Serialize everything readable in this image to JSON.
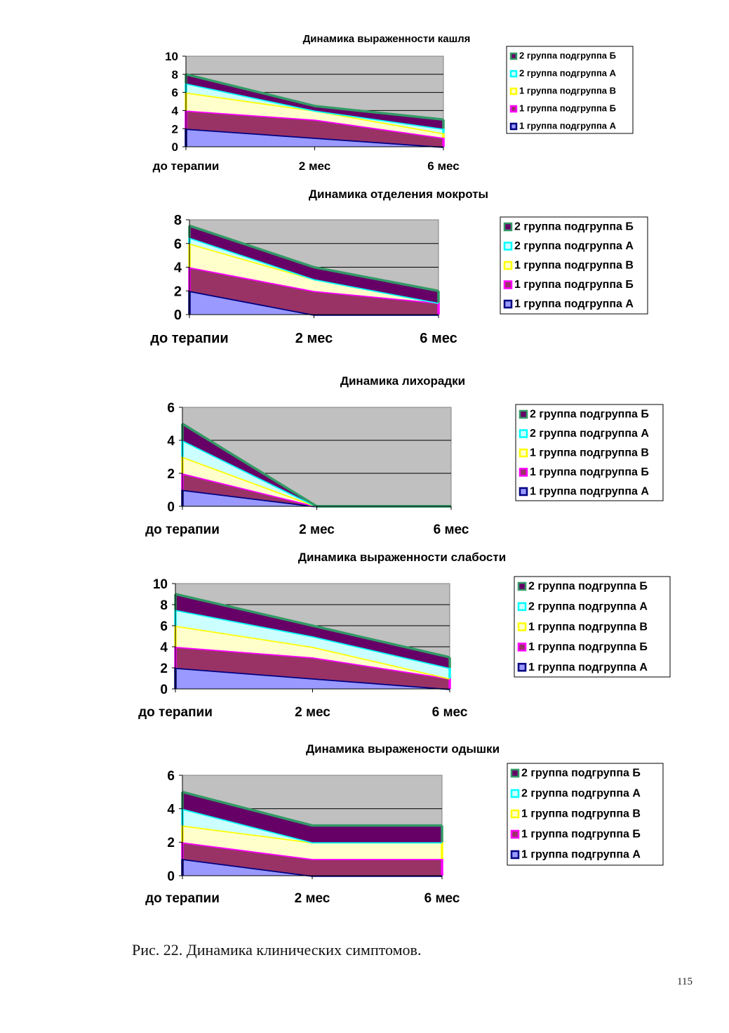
{
  "chart_data": [
    {
      "type": "area",
      "stacked": true,
      "title": "Динамика выраженности кашля",
      "categories": [
        "до терапии",
        "2 мес",
        "6 мес"
      ],
      "ylim": [
        0,
        10
      ],
      "yticks": [
        0,
        2,
        4,
        6,
        8,
        10
      ],
      "grid": true,
      "legend": "right",
      "series": [
        {
          "name": "1 группа подгруппа А",
          "values": [
            2,
            1,
            0
          ]
        },
        {
          "name": "1 группа подгруппа Б",
          "values": [
            2,
            2,
            1
          ]
        },
        {
          "name": "1 группа подгруппа В",
          "values": [
            2,
            1,
            0.5
          ]
        },
        {
          "name": "2 группа подгруппа А",
          "values": [
            1,
            0,
            0.5
          ]
        },
        {
          "name": "2 группа подгруппа Б",
          "values": [
            1,
            0.5,
            1
          ]
        }
      ]
    },
    {
      "type": "area",
      "stacked": true,
      "title": "Динамика отделения мокроты",
      "categories": [
        "до терапии",
        "2 мес",
        "6 мес"
      ],
      "ylim": [
        0,
        8
      ],
      "yticks": [
        0,
        2,
        4,
        6,
        8
      ],
      "grid": true,
      "legend": "right",
      "series": [
        {
          "name": "1 группа подгруппа А",
          "values": [
            2,
            0,
            0
          ]
        },
        {
          "name": "1 группа подгруппа Б",
          "values": [
            2,
            2,
            1
          ]
        },
        {
          "name": "1 группа подгруппа В",
          "values": [
            2,
            1,
            0
          ]
        },
        {
          "name": "2 группа подгруппа А",
          "values": [
            0.5,
            0,
            0
          ]
        },
        {
          "name": "2 группа подгруппа Б",
          "values": [
            1,
            1,
            1
          ]
        }
      ]
    },
    {
      "type": "area",
      "stacked": true,
      "title": "Динамика лихорадки",
      "categories": [
        "до терапии",
        "2 мес",
        "6 мес"
      ],
      "ylim": [
        0,
        6
      ],
      "yticks": [
        0,
        2,
        4,
        6
      ],
      "grid": true,
      "legend": "right",
      "series": [
        {
          "name": "1 группа подгруппа А",
          "values": [
            1,
            0,
            0
          ]
        },
        {
          "name": "1 группа подгруппа Б",
          "values": [
            1,
            0,
            0
          ]
        },
        {
          "name": "1 группа подгруппа В",
          "values": [
            1,
            0,
            0
          ]
        },
        {
          "name": "2 группа подгруппа А",
          "values": [
            1,
            0,
            0
          ]
        },
        {
          "name": "2 группа подгруппа Б",
          "values": [
            1,
            0,
            0
          ]
        }
      ]
    },
    {
      "type": "area",
      "stacked": true,
      "title": "Динамика выраженности слабости",
      "categories": [
        "до терапии",
        "2 мес",
        "6 мес"
      ],
      "ylim": [
        0,
        10
      ],
      "yticks": [
        0,
        2,
        4,
        6,
        8,
        10
      ],
      "grid": true,
      "legend": "right",
      "series": [
        {
          "name": "1 группа подгруппа А",
          "values": [
            2,
            1,
            0
          ]
        },
        {
          "name": "1 группа подгруппа Б",
          "values": [
            2,
            2,
            1
          ]
        },
        {
          "name": "1 группа подгруппа В",
          "values": [
            2,
            1,
            0
          ]
        },
        {
          "name": "2 группа подгруппа А",
          "values": [
            1.5,
            1,
            1
          ]
        },
        {
          "name": "2 группа подгруппа Б",
          "values": [
            1.5,
            1,
            1
          ]
        }
      ]
    },
    {
      "type": "area",
      "stacked": true,
      "title": "Динамика выражености одышки",
      "categories": [
        "до терапии",
        "2 мес",
        "6 мес"
      ],
      "ylim": [
        0,
        6
      ],
      "yticks": [
        0,
        2,
        4,
        6
      ],
      "grid": true,
      "legend": "right",
      "series": [
        {
          "name": "1 группа подгруппа А",
          "values": [
            1,
            0,
            0
          ]
        },
        {
          "name": "1 группа подгруппа Б",
          "values": [
            1,
            1,
            1
          ]
        },
        {
          "name": "1 группа подгруппа В",
          "values": [
            1,
            1,
            1
          ]
        },
        {
          "name": "2 группа подгруппа А",
          "values": [
            1,
            0,
            0
          ]
        },
        {
          "name": "2 группа подгруппа Б",
          "values": [
            1,
            1,
            1
          ]
        }
      ]
    }
  ],
  "colors": {
    "plot_background": "#c0c0c0",
    "grid": "#000000",
    "series_fill": [
      "#9999ff",
      "#993366",
      "#ffffcc",
      "#ccffff",
      "#660066"
    ],
    "series_line": [
      "#000080",
      "#ff00ff",
      "#ffff00",
      "#00ffff",
      "#339966"
    ]
  },
  "caption": "Рис. 22. Динамика клинических симптомов.",
  "page_number": "115"
}
